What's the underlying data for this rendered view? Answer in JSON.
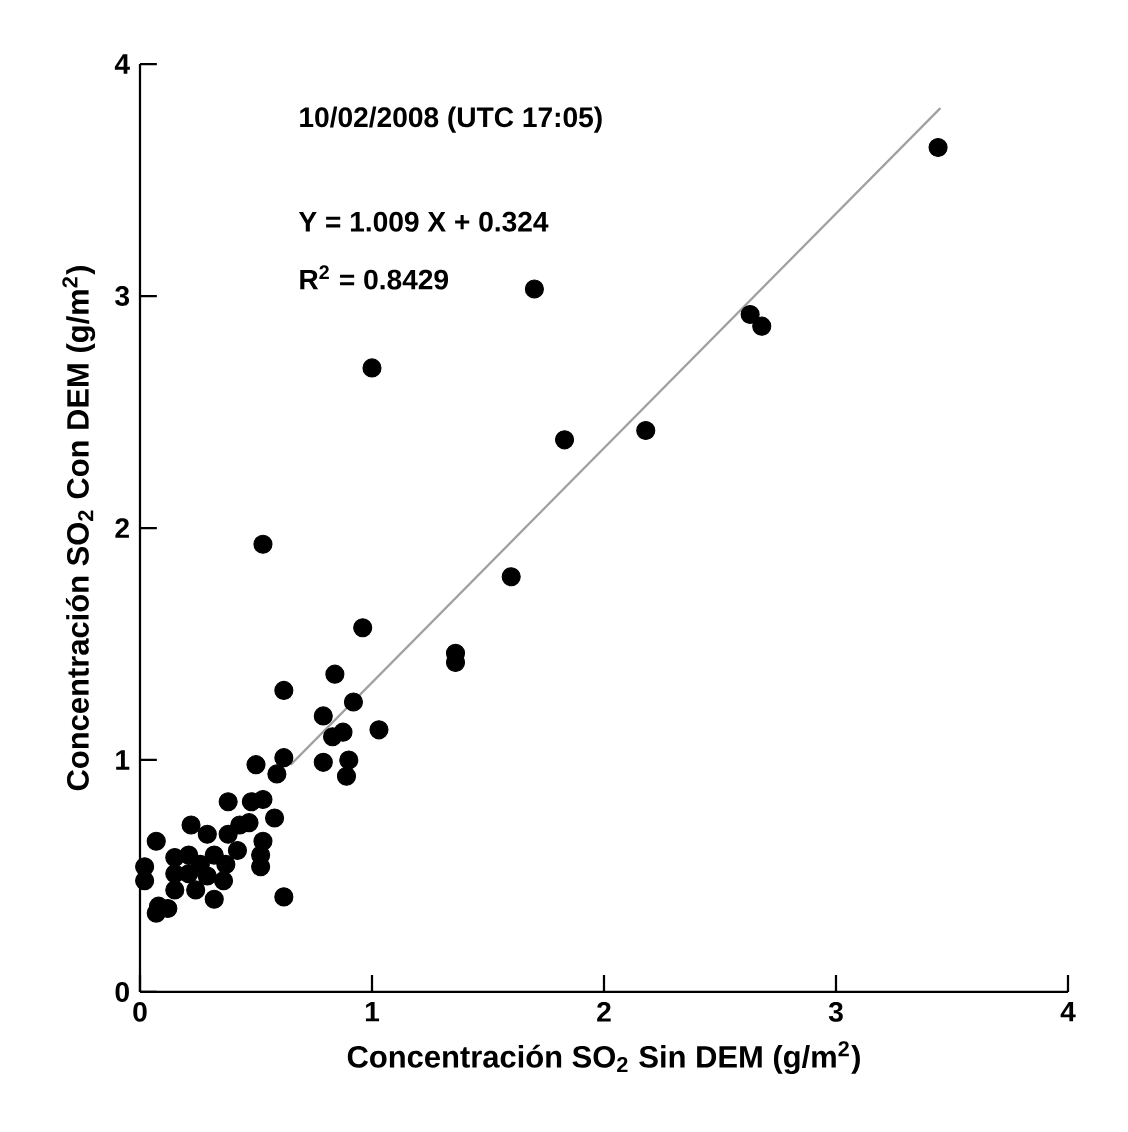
{
  "chart_data": {
    "type": "scatter",
    "xlabel": "Concentración SO$_{2}$ Sin DEM (g/m$^{2}$)",
    "ylabel": "Concentración SO$_{2}$ Con DEM (g/m$^{2}$)",
    "annotations": [
      "10/02/2008 (UTC 17:05)",
      "Y = 1.009 X + 0.324",
      "R$^{2}$ = 0.8429"
    ],
    "xlim": [
      0,
      4
    ],
    "ylim": [
      0,
      4
    ],
    "xticks": [
      0,
      1,
      2,
      3,
      4
    ],
    "yticks": [
      0,
      1,
      2,
      3,
      4
    ],
    "grid": false,
    "series": [
      {
        "marker": "circle",
        "color": "#000000",
        "x": [
          0.53,
          1.0,
          1.7,
          1.83,
          2.18,
          2.63,
          2.68,
          3.44,
          1.6,
          1.36,
          1.36,
          0.96,
          0.62,
          0.84,
          0.92,
          0.79,
          1.03,
          0.83,
          0.875,
          0.79,
          0.9,
          0.89,
          0.62,
          0.59,
          0.5,
          0.53,
          0.48,
          0.38,
          0.58,
          0.53,
          0.52,
          0.52,
          0.43,
          0.38,
          0.22,
          0.29,
          0.07,
          0.15,
          0.21,
          0.32,
          0.37,
          0.26,
          0.15,
          0.21,
          0.29,
          0.36,
          0.02,
          0.02,
          0.15,
          0.24,
          0.32,
          0.08,
          0.12,
          0.07,
          0.42,
          0.47,
          0.62
        ],
        "values": [
          1.93,
          2.69,
          3.03,
          2.38,
          2.42,
          2.92,
          2.87,
          3.64,
          1.79,
          1.46,
          1.42,
          1.57,
          1.3,
          1.37,
          1.25,
          1.19,
          1.13,
          1.1,
          1.12,
          0.99,
          1.0,
          0.93,
          1.01,
          0.94,
          0.98,
          0.83,
          0.82,
          0.82,
          0.75,
          0.65,
          0.59,
          0.54,
          0.72,
          0.68,
          0.72,
          0.68,
          0.65,
          0.58,
          0.59,
          0.59,
          0.55,
          0.55,
          0.51,
          0.51,
          0.5,
          0.48,
          0.54,
          0.48,
          0.44,
          0.44,
          0.4,
          0.37,
          0.36,
          0.34,
          0.61,
          0.73,
          0.41
        ]
      },
      {
        "type": "line",
        "marker": "none",
        "color": "#a0a0a0",
        "x": [
          0.65,
          3.45
        ],
        "values": [
          0.98,
          3.81
        ]
      }
    ]
  }
}
